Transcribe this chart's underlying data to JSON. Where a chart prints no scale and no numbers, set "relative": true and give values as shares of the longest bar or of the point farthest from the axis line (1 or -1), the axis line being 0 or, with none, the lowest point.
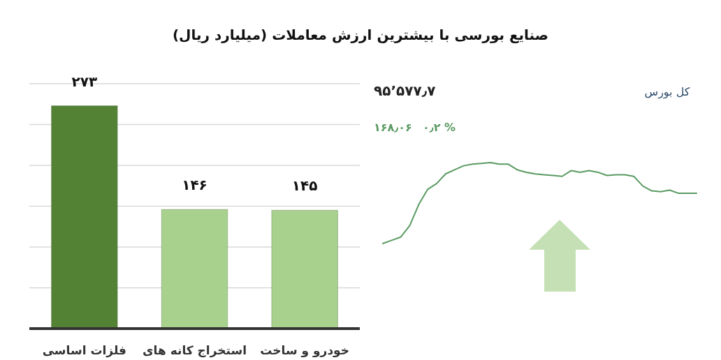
{
  "chart_data": [
    {
      "type": "bar",
      "title": "صنایع بورسی با بیشترین ارزش معاملات  (میلیارد ریال)",
      "categories": [
        "فلزات اساسی",
        "استخراج کانه های",
        "خودرو و ساخت"
      ],
      "values": [
        273,
        146,
        145
      ],
      "colors": [
        "#548235",
        "#a9d18e",
        "#a9d18e"
      ],
      "value_labels": [
        "۲۷۳",
        "۱۴۶",
        "۱۴۵"
      ],
      "ylim": [
        0,
        300
      ],
      "yticks": [
        {
          "value": 0,
          "label": null
        },
        {
          "value": 50,
          "label": null
        },
        {
          "value": 100,
          "label": null
        },
        {
          "value": 150,
          "label": null
        },
        {
          "value": 200,
          "label": null
        },
        {
          "value": 250,
          "label": null
        },
        {
          "value": 300,
          "label": null
        }
      ],
      "grid": "y",
      "tick_labels": "x"
    },
    {
      "type": "line",
      "title": "کل بورس",
      "relative": true,
      "categories": [
        null,
        null,
        null,
        null,
        null,
        null,
        null,
        null,
        null,
        null,
        null,
        null,
        null,
        null,
        null,
        null,
        null,
        null,
        null,
        null,
        null,
        null,
        null,
        null,
        null,
        null,
        null,
        null,
        null,
        null,
        null,
        null,
        null,
        null,
        null,
        null
      ],
      "series": [
        {
          "color": "#5a9a62",
          "values": [
            0,
            0.04,
            0.08,
            0.22,
            0.48,
            0.67,
            0.74,
            0.86,
            0.91,
            0.96,
            0.98,
            0.99,
            1,
            0.98,
            0.98,
            0.91,
            0.88,
            0.86,
            0.85,
            0.84,
            0.83,
            0.9,
            0.88,
            0.9,
            0.88,
            0.84,
            0.85,
            0.85,
            0.83,
            0.71,
            0.65,
            0.64,
            0.66,
            0.62,
            0.62,
            0.62
          ]
        }
      ],
      "annotations": [
        "۹۵’۵۷۷٫۷",
        "۱۶۸٫۰۶",
        "۰٫۲ %"
      ],
      "grid": false,
      "tick_labels": false
    }
  ]
}
